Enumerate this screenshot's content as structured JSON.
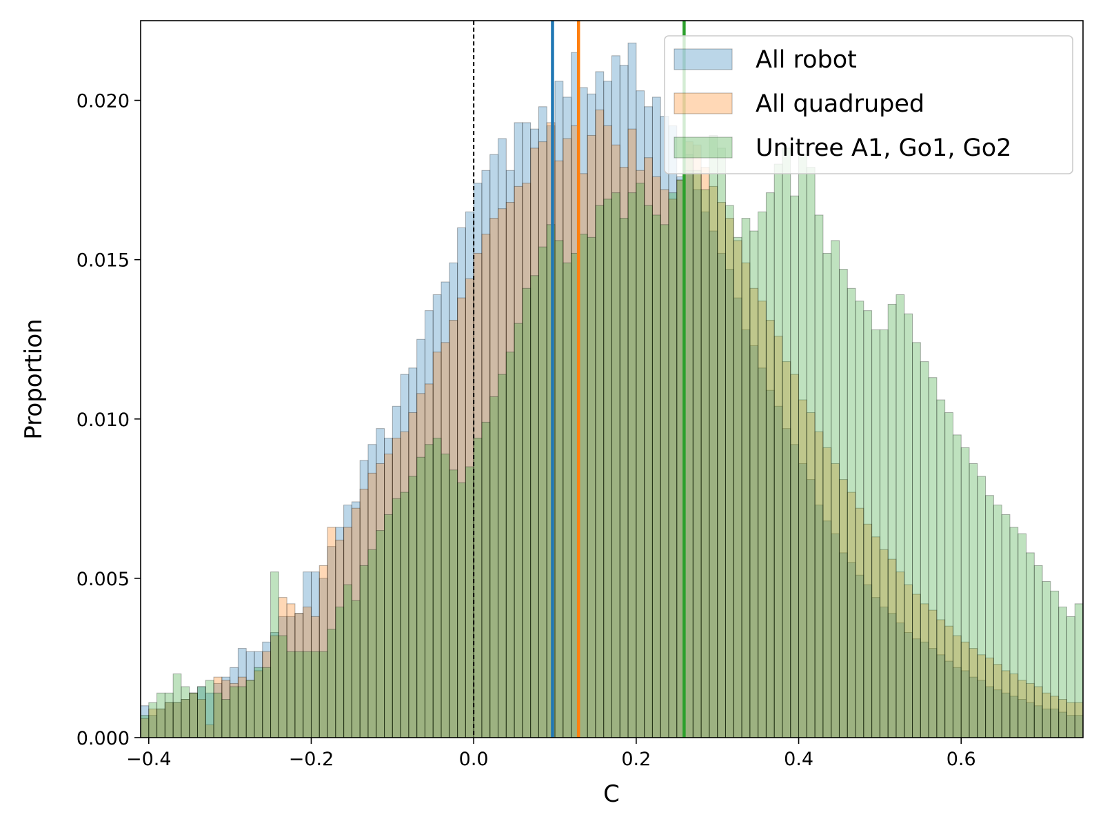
{
  "chart_data": {
    "type": "bar",
    "subtype": "histogram-overlay",
    "title": "",
    "xlabel": "C",
    "ylabel": "Proportion",
    "xlim": [
      -0.41,
      0.75
    ],
    "ylim": [
      0,
      0.0225
    ],
    "xticks": [
      -0.4,
      -0.2,
      0.0,
      0.2,
      0.4,
      0.6
    ],
    "xtick_labels": [
      "−0.4",
      "−0.2",
      "0.0",
      "0.2",
      "0.4",
      "0.6"
    ],
    "yticks": [
      0.0,
      0.005,
      0.01,
      0.015,
      0.02
    ],
    "ytick_labels": [
      "0.000",
      "0.005",
      "0.010",
      "0.015",
      "0.020"
    ],
    "bin_start": -0.41,
    "bin_width": 0.01,
    "grid": false,
    "legend_position": "top-right",
    "zero_line": {
      "x": 0.0,
      "style": "dashed",
      "color": "#000000"
    },
    "series": [
      {
        "name": "All robot",
        "color": "#1f77b4",
        "mean": 0.097,
        "values": [
          0.001,
          0.0007,
          0.0009,
          0.0011,
          0.0011,
          0.0012,
          0.0014,
          0.0016,
          0.0014,
          0.0017,
          0.0019,
          0.0022,
          0.0028,
          0.0027,
          0.0027,
          0.003,
          0.0033,
          0.0038,
          0.0038,
          0.0039,
          0.0052,
          0.0052,
          0.005,
          0.006,
          0.0066,
          0.0073,
          0.0074,
          0.0087,
          0.0092,
          0.0097,
          0.0094,
          0.0104,
          0.0114,
          0.0116,
          0.0125,
          0.0134,
          0.0139,
          0.0143,
          0.0149,
          0.016,
          0.0165,
          0.0174,
          0.0178,
          0.0183,
          0.0188,
          0.0178,
          0.0193,
          0.0193,
          0.0191,
          0.0198,
          0.0192,
          0.0206,
          0.0201,
          0.0215,
          0.0204,
          0.0202,
          0.0209,
          0.0206,
          0.0214,
          0.0211,
          0.0218,
          0.0203,
          0.0198,
          0.0201,
          0.0195,
          0.0192,
          0.0176,
          0.0178,
          0.0172,
          0.0165,
          0.0159,
          0.0152,
          0.0147,
          0.0138,
          0.0128,
          0.0123,
          0.0116,
          0.0109,
          0.0104,
          0.0097,
          0.0092,
          0.0086,
          0.0081,
          0.0073,
          0.0068,
          0.0064,
          0.0058,
          0.0055,
          0.0051,
          0.0048,
          0.0044,
          0.0041,
          0.0039,
          0.0036,
          0.0033,
          0.0031,
          0.003,
          0.0028,
          0.0026,
          0.0024,
          0.0022,
          0.0021,
          0.0019,
          0.0018,
          0.0016,
          0.0015,
          0.0014,
          0.0013,
          0.0012,
          0.0011,
          0.001,
          0.0009,
          0.0009,
          0.0008,
          0.0007,
          0.0007
        ]
      },
      {
        "name": "All quadruped",
        "color": "#ff7f0e",
        "mean": 0.129,
        "values": [
          0.0006,
          0.0009,
          0.0009,
          0.0011,
          0.0011,
          0.0012,
          0.0014,
          0.0012,
          0.0004,
          0.0019,
          0.0018,
          0.0017,
          0.0019,
          0.0018,
          0.0021,
          0.0027,
          0.0032,
          0.0044,
          0.0042,
          0.0039,
          0.0041,
          0.0038,
          0.0054,
          0.0066,
          0.0062,
          0.0066,
          0.0072,
          0.0078,
          0.0083,
          0.0086,
          0.0089,
          0.0094,
          0.0096,
          0.0102,
          0.0108,
          0.0111,
          0.0121,
          0.0124,
          0.0131,
          0.0138,
          0.0144,
          0.0152,
          0.0158,
          0.0163,
          0.0166,
          0.0168,
          0.0173,
          0.0174,
          0.0185,
          0.0187,
          0.0193,
          0.0181,
          0.0188,
          0.0192,
          0.0177,
          0.0189,
          0.0197,
          0.0192,
          0.0186,
          0.0179,
          0.0191,
          0.0178,
          0.0182,
          0.0176,
          0.0172,
          0.0169,
          0.0175,
          0.0187,
          0.0186,
          0.0179,
          0.0173,
          0.0168,
          0.0163,
          0.0156,
          0.0149,
          0.0141,
          0.0137,
          0.0131,
          0.0126,
          0.0118,
          0.0114,
          0.0106,
          0.0102,
          0.0096,
          0.0091,
          0.0086,
          0.0081,
          0.0077,
          0.0072,
          0.0067,
          0.0063,
          0.0059,
          0.0056,
          0.0052,
          0.0048,
          0.0045,
          0.0042,
          0.004,
          0.0037,
          0.0035,
          0.0032,
          0.003,
          0.0028,
          0.0026,
          0.0025,
          0.0023,
          0.0021,
          0.002,
          0.0018,
          0.0017,
          0.0016,
          0.0014,
          0.0013,
          0.0012,
          0.0011,
          0.0011
        ]
      },
      {
        "name": "Unitree A1, Go1, Go2",
        "color": "#2ca02c",
        "mean": 0.259,
        "values": [
          0.0007,
          0.0011,
          0.0014,
          0.0014,
          0.002,
          0.0016,
          0.0014,
          0.0016,
          0.0018,
          0.0014,
          0.0012,
          0.0016,
          0.0016,
          0.0018,
          0.0022,
          0.0022,
          0.0052,
          0.0032,
          0.0027,
          0.0027,
          0.0027,
          0.0027,
          0.0027,
          0.0034,
          0.0041,
          0.0048,
          0.0043,
          0.0054,
          0.0059,
          0.0065,
          0.007,
          0.0075,
          0.0077,
          0.0082,
          0.0088,
          0.0092,
          0.0094,
          0.0089,
          0.0084,
          0.008,
          0.0085,
          0.0094,
          0.0099,
          0.0107,
          0.0114,
          0.0121,
          0.013,
          0.0141,
          0.0145,
          0.0154,
          0.0161,
          0.0156,
          0.0149,
          0.0152,
          0.0158,
          0.0157,
          0.0167,
          0.0169,
          0.0171,
          0.0163,
          0.0171,
          0.0174,
          0.0167,
          0.0164,
          0.0161,
          0.0171,
          0.0175,
          0.0183,
          0.0178,
          0.0172,
          0.0189,
          0.0185,
          0.0167,
          0.0157,
          0.0163,
          0.0159,
          0.0165,
          0.0171,
          0.018,
          0.0185,
          0.017,
          0.0183,
          0.0179,
          0.0164,
          0.0152,
          0.0156,
          0.0147,
          0.0141,
          0.0137,
          0.0134,
          0.0128,
          0.0128,
          0.0136,
          0.0139,
          0.0133,
          0.0124,
          0.0118,
          0.0113,
          0.0106,
          0.0102,
          0.0095,
          0.0091,
          0.0086,
          0.0082,
          0.0076,
          0.0073,
          0.007,
          0.0066,
          0.0064,
          0.0058,
          0.0054,
          0.0049,
          0.0046,
          0.0041,
          0.0038,
          0.0042
        ]
      }
    ]
  }
}
